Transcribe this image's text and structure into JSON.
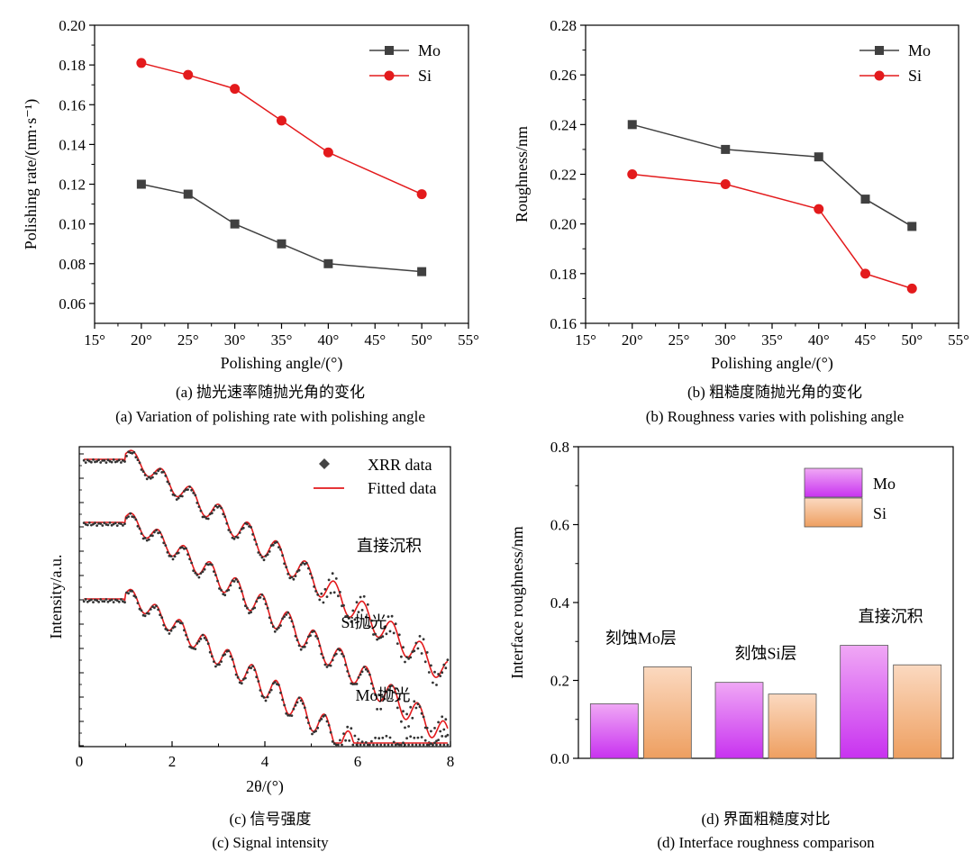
{
  "colors": {
    "mo_line": "#404040",
    "si_line": "#e31a1c",
    "xrr_data": "#333333",
    "fit_line": "#e31a1c",
    "mo_bar_top": "#f0a8f5",
    "mo_bar_bottom": "#c832f0",
    "si_bar_top": "#fbd9c0",
    "si_bar_bottom": "#ee9f60"
  },
  "panels": {
    "a": {
      "caption_cn": "(a) 抛光速率随抛光角的变化",
      "caption_en": "(a) Variation of polishing rate with polishing angle"
    },
    "b": {
      "caption_cn": "(b) 粗糙度随抛光角的变化",
      "caption_en": "(b) Roughness varies with polishing angle"
    },
    "c": {
      "caption_cn": "(c) 信号强度",
      "caption_en": "(c) Signal intensity"
    },
    "d": {
      "caption_cn": "(d) 界面粗糙度对比",
      "caption_en": "(d) Interface roughness comparison"
    }
  },
  "chart_data": [
    {
      "id": "a",
      "type": "line",
      "xlabel": "Polishing angle/(°)",
      "ylabel": "Polishing rate/(nm·s⁻¹)",
      "xlim": [
        15,
        55
      ],
      "ylim": [
        0.05,
        0.2
      ],
      "x_ticks": [
        "15°",
        "20°",
        "25°",
        "30°",
        "35°",
        "40°",
        "45°",
        "50°",
        "55°"
      ],
      "y_ticks": [
        "0.06",
        "0.08",
        "0.10",
        "0.12",
        "0.14",
        "0.16",
        "0.18",
        "0.20"
      ],
      "legend_position": "top-right",
      "series": [
        {
          "name": "Mo",
          "marker": "square",
          "x": [
            20,
            25,
            30,
            35,
            40,
            50
          ],
          "values": [
            0.12,
            0.115,
            0.1,
            0.09,
            0.08,
            0.076
          ]
        },
        {
          "name": "Si",
          "marker": "circle",
          "x": [
            20,
            25,
            30,
            35,
            40,
            50
          ],
          "values": [
            0.181,
            0.175,
            0.168,
            0.152,
            0.136,
            0.115
          ]
        }
      ]
    },
    {
      "id": "b",
      "type": "line",
      "xlabel": "Polishing angle/(°)",
      "ylabel": "Roughness/nm",
      "xlim": [
        15,
        55
      ],
      "ylim": [
        0.16,
        0.28
      ],
      "x_ticks": [
        "15°",
        "20°",
        "25°",
        "30°",
        "35°",
        "40°",
        "45°",
        "50°",
        "55°"
      ],
      "y_ticks": [
        "0.16",
        "0.18",
        "0.20",
        "0.22",
        "0.24",
        "0.26",
        "0.28"
      ],
      "legend_position": "top-right",
      "series": [
        {
          "name": "Mo",
          "marker": "square",
          "x": [
            20,
            30,
            40,
            45,
            50
          ],
          "values": [
            0.24,
            0.23,
            0.227,
            0.21,
            0.199
          ]
        },
        {
          "name": "Si",
          "marker": "circle",
          "x": [
            20,
            30,
            40,
            45,
            50
          ],
          "values": [
            0.22,
            0.216,
            0.206,
            0.18,
            0.174
          ]
        }
      ]
    },
    {
      "id": "c",
      "type": "line",
      "xlabel": "2θ/(°)",
      "ylabel": "Intensity/a.u.",
      "xlim": [
        0,
        8
      ],
      "x_ticks": [
        "0",
        "2",
        "4",
        "6",
        "8"
      ],
      "y_log_scale": true,
      "legend_position": "top-right",
      "legend": [
        "XRR data",
        "Fitted data"
      ],
      "curve_labels": [
        "直接沉积",
        "Si抛光",
        "Mo抛光"
      ],
      "curves": [
        {
          "label": "直接沉积",
          "offset": 0.0,
          "period": 0.62,
          "decay": 2.3,
          "noise_onset": 5.2
        },
        {
          "label": "Si抛光",
          "offset": 1.0,
          "period": 0.56,
          "decay": 2.4,
          "noise_onset": 6.4
        },
        {
          "label": "Mo抛光",
          "offset": 2.0,
          "period": 0.52,
          "decay": 2.2,
          "noise_onset": 5.6
        }
      ]
    },
    {
      "id": "d",
      "type": "bar",
      "ylabel": "Interface roughness/nm",
      "ylim": [
        0.0,
        0.8
      ],
      "y_ticks": [
        "0.0",
        "0.2",
        "0.4",
        "0.6",
        "0.8"
      ],
      "legend_position": "top-right",
      "categories": [
        "刻蚀Mo层",
        "刻蚀Si层",
        "直接沉积"
      ],
      "series": [
        {
          "name": "Mo",
          "values": [
            0.14,
            0.195,
            0.29
          ]
        },
        {
          "name": "Si",
          "values": [
            0.235,
            0.165,
            0.24
          ]
        }
      ]
    }
  ]
}
